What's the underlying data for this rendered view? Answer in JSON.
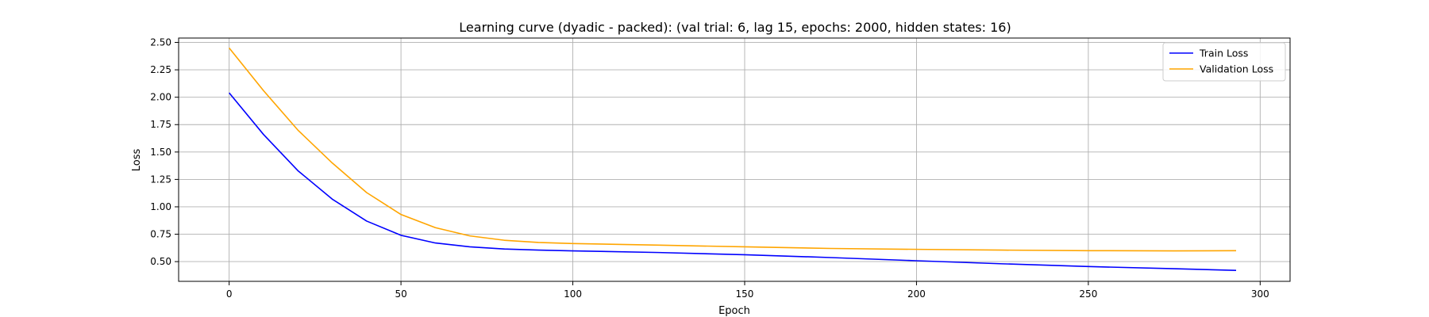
{
  "chart_data": {
    "type": "line",
    "title": "Learning curve (dyadic - packed): (val trial: 6, lag 15, epochs: 2000, hidden states: 16)",
    "xlabel": "Epoch",
    "ylabel": "Loss",
    "xlim": [
      -14.7,
      308.7
    ],
    "ylim": [
      0.32,
      2.54
    ],
    "xticks": [
      0,
      50,
      100,
      150,
      200,
      250,
      300
    ],
    "yticks": [
      0.5,
      0.75,
      1.0,
      1.25,
      1.5,
      1.75,
      2.0,
      2.25,
      2.5
    ],
    "xtick_labels": [
      "0",
      "50",
      "100",
      "150",
      "200",
      "250",
      "300"
    ],
    "ytick_labels": [
      "0.50",
      "0.75",
      "1.00",
      "1.25",
      "1.50",
      "1.75",
      "2.00",
      "2.25",
      "2.50"
    ],
    "grid": true,
    "legend_position": "top-right",
    "series": [
      {
        "name": "Train Loss",
        "color": "#0000ff",
        "x": [
          0,
          10,
          20,
          30,
          40,
          50,
          60,
          70,
          80,
          90,
          100,
          125,
          150,
          175,
          200,
          225,
          250,
          275,
          293
        ],
        "values": [
          2.04,
          1.66,
          1.33,
          1.07,
          0.87,
          0.74,
          0.67,
          0.635,
          0.615,
          0.605,
          0.598,
          0.583,
          0.563,
          0.537,
          0.508,
          0.48,
          0.455,
          0.435,
          0.42
        ]
      },
      {
        "name": "Validation Loss",
        "color": "#ffa500",
        "x": [
          0,
          10,
          20,
          30,
          40,
          50,
          60,
          70,
          80,
          90,
          100,
          125,
          150,
          175,
          200,
          225,
          250,
          275,
          293
        ],
        "values": [
          2.45,
          2.06,
          1.7,
          1.4,
          1.13,
          0.93,
          0.81,
          0.735,
          0.695,
          0.675,
          0.665,
          0.65,
          0.635,
          0.62,
          0.612,
          0.605,
          0.6,
          0.598,
          0.6
        ]
      }
    ]
  }
}
